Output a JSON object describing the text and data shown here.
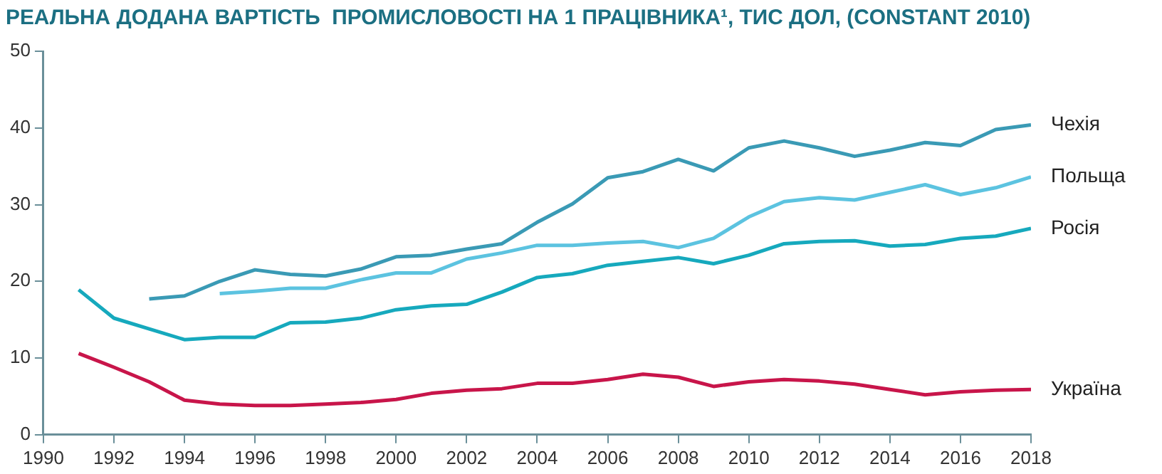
{
  "chart_data": {
    "type": "line",
    "title": "РЕАЛЬНА ДОДАНА ВАРТІСТЬ  ПРОМИСЛОВОСТІ НА 1 ПРАЦІВНИКА¹, ТИС ДОЛ, (CONSTANT 2010)",
    "x": [
      1991,
      1992,
      1993,
      1994,
      1995,
      1996,
      1997,
      1998,
      1999,
      2000,
      2001,
      2002,
      2003,
      2004,
      2005,
      2006,
      2007,
      2008,
      2009,
      2010,
      2011,
      2012,
      2013,
      2014,
      2015,
      2016,
      2017,
      2018
    ],
    "series": [
      {
        "name": "Чехія",
        "color": "#3a9ab5",
        "values": [
          null,
          null,
          17.7,
          18.1,
          20.0,
          21.5,
          20.9,
          20.7,
          21.6,
          23.2,
          23.4,
          24.2,
          24.9,
          27.7,
          30.1,
          33.5,
          34.3,
          35.9,
          34.4,
          37.4,
          38.3,
          37.4,
          36.3,
          37.1,
          38.1,
          37.7,
          39.8,
          40.4
        ]
      },
      {
        "name": "Польща",
        "color": "#5cc3e0",
        "values": [
          null,
          null,
          null,
          null,
          18.4,
          18.7,
          19.1,
          19.1,
          20.2,
          21.1,
          21.1,
          22.9,
          23.7,
          24.7,
          24.7,
          25.0,
          25.2,
          24.4,
          25.6,
          28.4,
          30.4,
          30.9,
          30.6,
          31.6,
          32.6,
          31.3,
          32.2,
          33.6
        ]
      },
      {
        "name": "Росія",
        "color": "#16a9bd",
        "values": [
          18.9,
          15.2,
          13.8,
          12.4,
          12.7,
          12.7,
          14.6,
          14.7,
          15.2,
          16.3,
          16.8,
          17.0,
          18.6,
          20.5,
          21.0,
          22.1,
          22.6,
          23.1,
          22.3,
          23.4,
          24.9,
          25.2,
          25.3,
          24.6,
          24.8,
          25.6,
          25.9,
          26.9
        ]
      },
      {
        "name": "Україна",
        "color": "#c8154a",
        "values": [
          10.6,
          8.8,
          6.9,
          4.5,
          4.0,
          3.8,
          3.8,
          4.0,
          4.2,
          4.6,
          5.4,
          5.8,
          6.0,
          6.7,
          6.7,
          7.2,
          7.9,
          7.5,
          6.3,
          6.9,
          7.2,
          7.0,
          6.6,
          5.9,
          5.2,
          5.6,
          5.8,
          5.9
        ]
      }
    ],
    "xlim": [
      1990,
      2018
    ],
    "xticks": [
      1990,
      1992,
      1994,
      1996,
      1998,
      2000,
      2002,
      2004,
      2006,
      2008,
      2010,
      2012,
      2014,
      2016,
      2018
    ],
    "ylim": [
      0,
      50
    ],
    "yticks": [
      0,
      10,
      20,
      30,
      40,
      50
    ],
    "grid": false,
    "legend": false,
    "marker": "none",
    "line_style": "solid"
  }
}
